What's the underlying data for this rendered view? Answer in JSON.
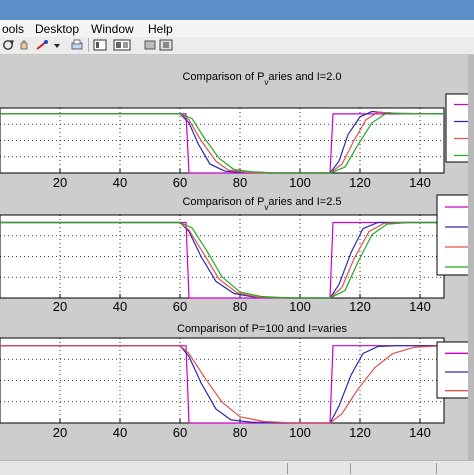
{
  "menu": {
    "items": [
      "ools",
      "Desktop",
      "Window",
      "Help"
    ]
  },
  "toolbar": {
    "icons": [
      "rotate-icon",
      "pan-icon",
      "data-cursor-icon",
      "dropdown-arrow-icon",
      "print-icon",
      "colorbar-icon",
      "legend-icon",
      "hide-plot-tools-icon",
      "show-plot-tools-icon"
    ]
  },
  "chart_data": [
    {
      "type": "line",
      "title": "Comparison of P_v aries and I=2.0",
      "title_parts": [
        "Comparison of P",
        "v",
        "aries and I=2.0"
      ],
      "xlabel": "",
      "ylabel": "",
      "xlim": [
        0,
        148
      ],
      "ylim": [
        0,
        1.1
      ],
      "x_ticks": [
        20,
        40,
        60,
        80,
        100,
        120,
        140
      ],
      "grid": true,
      "legend": "right",
      "legend_count": 4,
      "series": [
        {
          "color": "#cc00cc",
          "x": [
            0,
            62,
            63,
            110,
            111,
            148
          ],
          "values": [
            1,
            1,
            0,
            0,
            1,
            1
          ]
        },
        {
          "color": "#2a2ab0",
          "x": [
            0,
            60,
            63,
            66,
            70,
            75,
            80,
            90,
            110,
            113,
            116,
            120,
            124,
            130,
            148
          ],
          "values": [
            1,
            1,
            0.85,
            0.5,
            0.15,
            0.03,
            0.01,
            0,
            0,
            0.2,
            0.65,
            0.95,
            1.04,
            1.01,
            1
          ]
        },
        {
          "color": "#e05050",
          "x": [
            0,
            60,
            63,
            67,
            72,
            76,
            82,
            90,
            110,
            114,
            118,
            122,
            126,
            132,
            148
          ],
          "values": [
            1,
            1,
            0.9,
            0.55,
            0.2,
            0.05,
            0.01,
            0,
            0,
            0.15,
            0.55,
            0.9,
            1.03,
            1.01,
            1
          ]
        },
        {
          "color": "#22aa22",
          "x": [
            0,
            60,
            64,
            68,
            73,
            78,
            84,
            92,
            110,
            115,
            119,
            124,
            129,
            135,
            148
          ],
          "values": [
            1,
            1,
            0.92,
            0.6,
            0.25,
            0.06,
            0.02,
            0,
            0,
            0.1,
            0.45,
            0.85,
            1.02,
            1.0,
            1
          ]
        }
      ]
    },
    {
      "type": "line",
      "title": "Comparison of P_v aries and I=2.5",
      "title_parts": [
        "Comparison of P",
        "v",
        "aries and I=2.5"
      ],
      "xlabel": "",
      "ylabel": "",
      "xlim": [
        0,
        148
      ],
      "ylim": [
        0,
        1.1
      ],
      "x_ticks": [
        20,
        40,
        60,
        80,
        100,
        120,
        140
      ],
      "grid": true,
      "legend": "right",
      "legend_count": 4,
      "series": [
        {
          "color": "#cc00cc",
          "x": [
            0,
            62,
            63,
            110,
            111,
            148
          ],
          "values": [
            1,
            1,
            0,
            0,
            1,
            1
          ]
        },
        {
          "color": "#2a2ab0",
          "x": [
            0,
            60,
            63,
            67,
            72,
            78,
            85,
            95,
            110,
            113,
            117,
            121,
            126,
            132,
            148
          ],
          "values": [
            1,
            1,
            0.88,
            0.55,
            0.22,
            0.06,
            0.01,
            0,
            0,
            0.18,
            0.6,
            0.92,
            1.0,
            1.0,
            1
          ]
        },
        {
          "color": "#e05050",
          "x": [
            0,
            60,
            63,
            68,
            73,
            79,
            86,
            96,
            110,
            114,
            118,
            123,
            128,
            134,
            148
          ],
          "values": [
            1,
            1,
            0.9,
            0.58,
            0.25,
            0.07,
            0.01,
            0,
            0,
            0.14,
            0.52,
            0.88,
            0.99,
            1.0,
            1
          ]
        },
        {
          "color": "#22aa22",
          "x": [
            0,
            60,
            64,
            69,
            74,
            80,
            87,
            97,
            110,
            115,
            119,
            124,
            129,
            136,
            148
          ],
          "values": [
            1,
            1,
            0.93,
            0.62,
            0.28,
            0.08,
            0.02,
            0,
            0,
            0.1,
            0.45,
            0.84,
            0.98,
            1.0,
            1
          ]
        }
      ]
    },
    {
      "type": "line",
      "title": "Comparison of P=100 and I=varies",
      "title_parts": [
        "Comparison of P=100 and I=varies",
        "",
        ""
      ],
      "xlabel": "",
      "ylabel": "",
      "xlim": [
        0,
        148
      ],
      "ylim": [
        0,
        1.1
      ],
      "x_ticks": [
        20,
        40,
        60,
        80,
        100,
        120,
        140
      ],
      "grid": true,
      "legend": "right",
      "legend_count": 3,
      "series": [
        {
          "color": "#cc00cc",
          "x": [
            0,
            62,
            63,
            110,
            111,
            148
          ],
          "values": [
            1,
            1,
            0,
            0,
            1,
            1
          ]
        },
        {
          "color": "#2a2ab0",
          "x": [
            0,
            60,
            63,
            67,
            72,
            77,
            84,
            95,
            110,
            113,
            117,
            121,
            126,
            132,
            148
          ],
          "values": [
            1,
            1,
            0.86,
            0.52,
            0.18,
            0.04,
            0.01,
            0,
            0,
            0.22,
            0.62,
            0.9,
            0.99,
            1.0,
            1
          ]
        },
        {
          "color": "#e05050",
          "x": [
            0,
            60,
            63,
            68,
            74,
            80,
            88,
            98,
            110,
            114,
            119,
            125,
            131,
            138,
            148
          ],
          "values": [
            1,
            1,
            0.9,
            0.6,
            0.27,
            0.08,
            0.02,
            0,
            0,
            0.12,
            0.42,
            0.72,
            0.9,
            0.98,
            1
          ]
        }
      ]
    }
  ]
}
